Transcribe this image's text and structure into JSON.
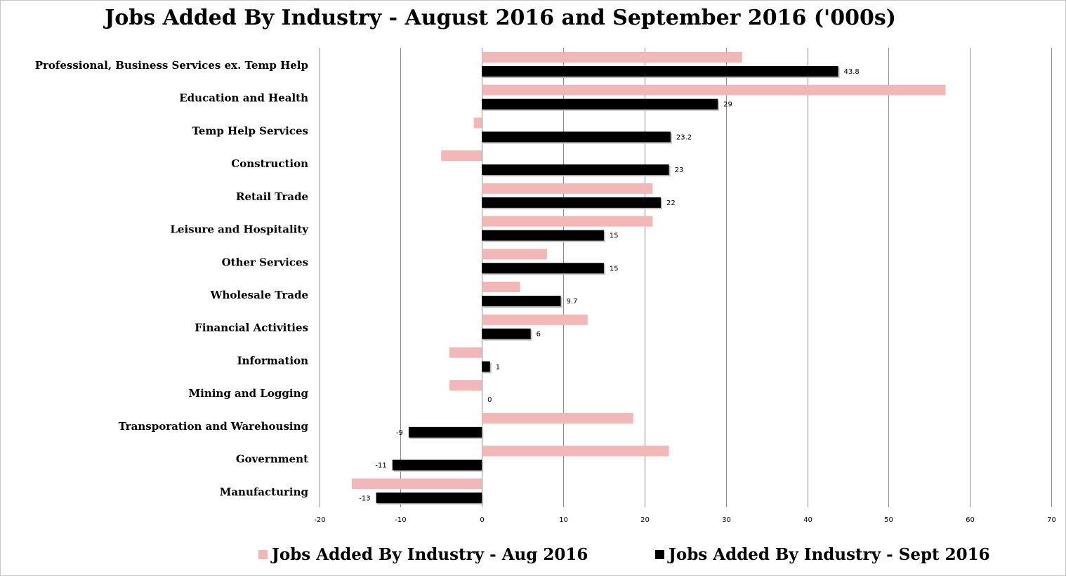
{
  "chart_data": {
    "type": "bar",
    "orientation": "horizontal",
    "title": "Jobs Added By Industry - August 2016 and September 2016 ('000s)",
    "categories": [
      "Professional, Business Services ex. Temp Help",
      "Education and Health",
      "Temp Help Services",
      "Construction",
      "Retail Trade",
      "Leisure and Hospitality",
      "Other Services",
      "Wholesale Trade",
      "Financial Activities",
      "Information",
      "Mining and Logging",
      "Transporation and Warehousing",
      "Government",
      "Manufacturing"
    ],
    "series": [
      {
        "name": "Jobs Added By Industry - Aug 2016",
        "color": "#f2b8b8",
        "values": [
          32,
          57,
          -1,
          -5,
          21,
          21,
          8,
          4.7,
          13,
          -4,
          -4,
          18.6,
          23,
          -16
        ]
      },
      {
        "name": "Jobs Added By Industry - Sept 2016",
        "color": "#000000",
        "values": [
          43.8,
          29,
          23.2,
          23,
          22,
          15,
          15,
          9.7,
          6,
          1,
          0,
          -9,
          -11,
          -13
        ],
        "data_labels": [
          "43.8",
          "29",
          "23.2",
          "23",
          "22",
          "15",
          "15",
          "9.7",
          "6",
          "1",
          "0",
          "-9",
          "-11",
          "-13"
        ]
      }
    ],
    "xlim": [
      -20,
      70
    ],
    "xticks": [
      "-20",
      "-10",
      "0",
      "10",
      "20",
      "30",
      "40",
      "50",
      "60",
      "70"
    ],
    "grid": true,
    "legend_position": "bottom"
  }
}
